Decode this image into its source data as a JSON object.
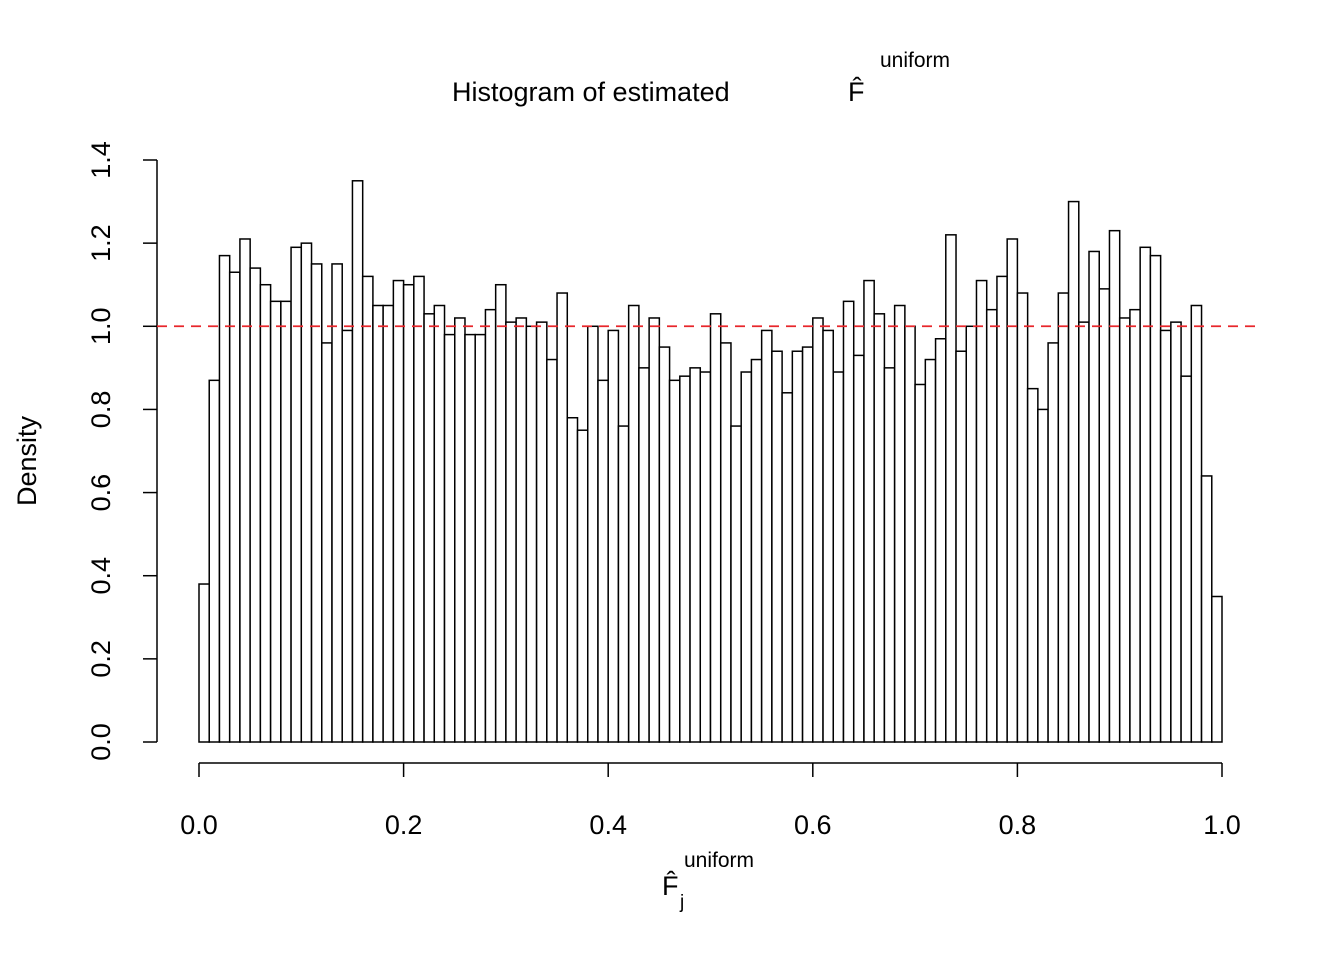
{
  "chart_data": {
    "type": "histogram",
    "title": "Histogram of estimated",
    "title_symbol": "F̂",
    "title_superscript": "uniform",
    "xlabel_symbol": "F̂",
    "xlabel_subscript": "j",
    "xlabel_superscript": "uniform",
    "ylabel": "Density",
    "bins": [
      0,
      0.01,
      0.02,
      0.03,
      0.04,
      0.05,
      0.06,
      0.07,
      0.08,
      0.09,
      0.1,
      0.11,
      0.12,
      0.13,
      0.14,
      0.15,
      0.16,
      0.17,
      0.18,
      0.19,
      0.2,
      0.21,
      0.22,
      0.23,
      0.24,
      0.25,
      0.26,
      0.27,
      0.28,
      0.29,
      0.3,
      0.31,
      0.32,
      0.33,
      0.34,
      0.35,
      0.36,
      0.37,
      0.38,
      0.39,
      0.4,
      0.41,
      0.42,
      0.43,
      0.44,
      0.45,
      0.46,
      0.47,
      0.48,
      0.49,
      0.5,
      0.51,
      0.52,
      0.53,
      0.54,
      0.55,
      0.56,
      0.57,
      0.58,
      0.59,
      0.6,
      0.61,
      0.62,
      0.63,
      0.64,
      0.65,
      0.66,
      0.67,
      0.68,
      0.69,
      0.7,
      0.71,
      0.72,
      0.73,
      0.74,
      0.75,
      0.76,
      0.77,
      0.78,
      0.79,
      0.8,
      0.81,
      0.82,
      0.83,
      0.84,
      0.85,
      0.86,
      0.87,
      0.88,
      0.89,
      0.9,
      0.91,
      0.92,
      0.93,
      0.94,
      0.95,
      0.96,
      0.97,
      0.98,
      0.99,
      1
    ],
    "values": [
      0.38,
      0.87,
      1.17,
      1.13,
      1.21,
      1.14,
      1.1,
      1.06,
      1.06,
      1.19,
      1.2,
      1.15,
      0.96,
      1.15,
      0.99,
      1.35,
      1.12,
      1.05,
      1.05,
      1.11,
      1.1,
      1.12,
      1.03,
      1.05,
      0.98,
      1.02,
      0.98,
      0.98,
      1.04,
      1.1,
      1.01,
      1.02,
      1.0,
      1.01,
      0.92,
      1.08,
      0.78,
      0.75,
      1.0,
      0.87,
      0.99,
      0.76,
      1.05,
      0.9,
      1.02,
      0.95,
      0.87,
      0.88,
      0.9,
      0.89,
      1.03,
      0.96,
      0.76,
      0.89,
      0.92,
      0.99,
      0.94,
      0.84,
      0.94,
      0.95,
      1.02,
      0.99,
      0.89,
      1.06,
      0.93,
      1.11,
      1.03,
      0.9,
      1.05,
      1.0,
      0.86,
      0.92,
      0.97,
      1.22,
      0.94,
      1.0,
      1.11,
      1.04,
      1.12,
      1.21,
      1.08,
      0.85,
      0.8,
      0.96,
      1.08,
      1.3,
      1.01,
      1.18,
      1.09,
      1.23,
      1.02,
      1.04,
      1.19,
      1.17,
      0.99,
      1.01,
      0.88,
      1.05,
      0.64,
      0.35
    ],
    "color": "#ffffff",
    "edgecolor": "#000000",
    "xlim": [
      0,
      1
    ],
    "ylim": [
      0,
      1.4
    ],
    "xticks": [
      {
        "value": 0,
        "label": "0.0"
      },
      0.2,
      0.4,
      0.6,
      0.8,
      {
        "value": 1,
        "label": "1.0"
      }
    ],
    "yticks": [
      {
        "value": 0,
        "label": "0.0"
      },
      0.2,
      0.4,
      0.6,
      0.8,
      {
        "value": 1,
        "label": "1.0"
      },
      1.2,
      1.4
    ],
    "hline": {
      "value": 1,
      "color": "#e8262b",
      "style": "dashed"
    }
  }
}
